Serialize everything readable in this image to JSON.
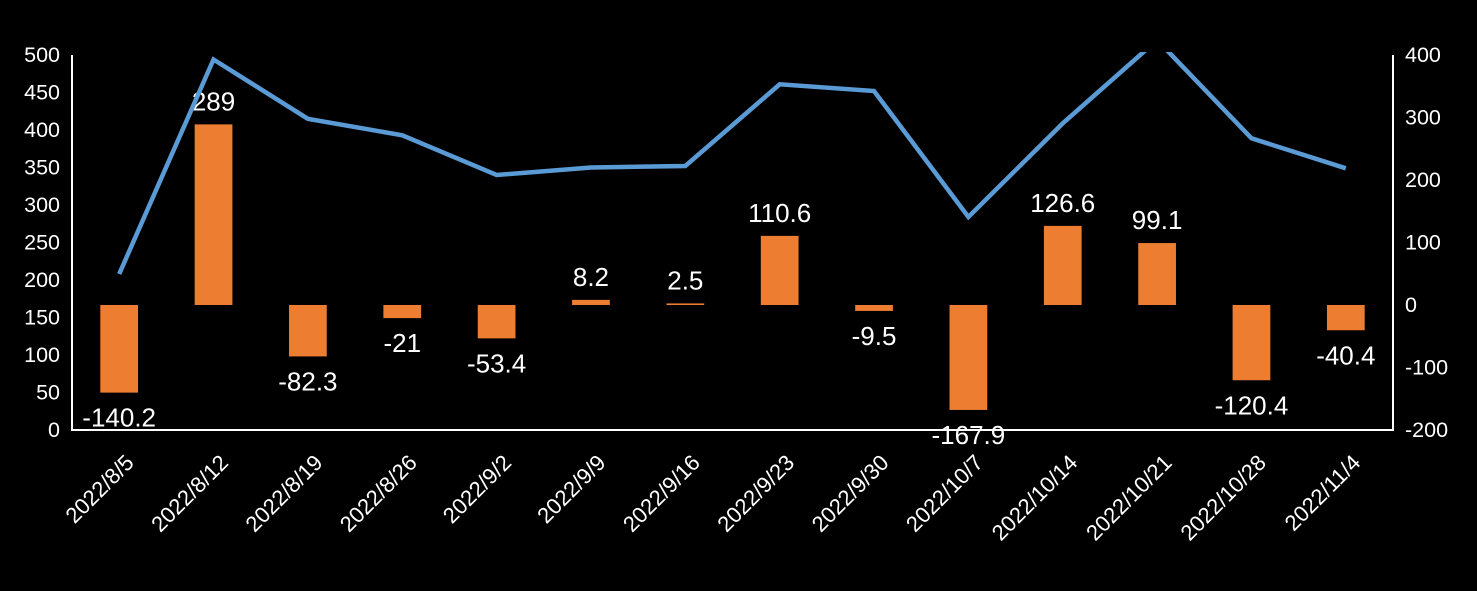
{
  "chart_data": {
    "type": "combo",
    "title": "",
    "legend": "none",
    "grid": "off",
    "background_color": "#000000",
    "text_color": "#FFFFFF",
    "axis_line_color": "#FFFFFF",
    "categories": [
      "2022/8/5",
      "2022/8/12",
      "2022/8/19",
      "2022/8/26",
      "2022/9/2",
      "2022/9/9",
      "2022/9/16",
      "2022/9/23",
      "2022/9/30",
      "2022/10/7",
      "2022/10/14",
      "2022/10/21",
      "2022/10/28",
      "2022/11/4"
    ],
    "series": [
      {
        "name": "weekly-change-bars",
        "type": "bar",
        "axis": "right",
        "color": "#ED7D31",
        "values": [
          -140.2,
          289,
          -82.3,
          -21,
          -53.4,
          8.2,
          2.5,
          110.6,
          -9.5,
          -167.9,
          126.6,
          99.1,
          -120.4,
          -40.4
        ],
        "labels": [
          "-140.2",
          "289",
          "-82.3",
          "-21",
          "-53.4",
          "8.2",
          "2.5",
          "110.6",
          "-9.5",
          "-167.9",
          "126.6",
          "99.1",
          "-120.4",
          "-40.4"
        ]
      },
      {
        "name": "level-line",
        "type": "line",
        "axis": "left",
        "color": "#5B9BD5",
        "values": [
          208,
          494,
          415,
          393,
          340,
          350,
          352,
          461,
          452,
          284,
          409,
          520,
          389,
          349
        ]
      }
    ],
    "left_axis": {
      "min": 0,
      "max": 500,
      "step": 50,
      "ticks": [
        "0",
        "50",
        "100",
        "150",
        "200",
        "250",
        "300",
        "350",
        "400",
        "450",
        "500"
      ]
    },
    "right_axis": {
      "min": -200,
      "max": 400,
      "step": 100,
      "ticks": [
        "-200",
        "-100",
        "0",
        "100",
        "200",
        "300",
        "400"
      ]
    }
  }
}
